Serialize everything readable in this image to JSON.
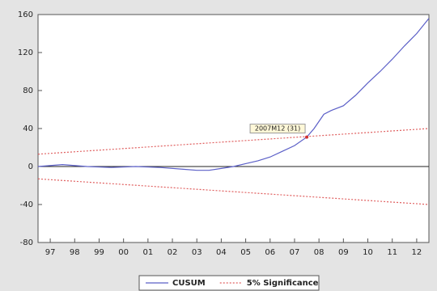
{
  "chart_data": {
    "type": "line",
    "xlim": [
      1997,
      2013
    ],
    "xticks": [
      {
        "value": 1997.5,
        "label": "97"
      },
      {
        "value": 1998.5,
        "label": "98"
      },
      {
        "value": 1999.5,
        "label": "99"
      },
      {
        "value": 2000.5,
        "label": "00"
      },
      {
        "value": 2001.5,
        "label": "01"
      },
      {
        "value": 2002.5,
        "label": "02"
      },
      {
        "value": 2003.5,
        "label": "03"
      },
      {
        "value": 2004.5,
        "label": "04"
      },
      {
        "value": 2005.5,
        "label": "05"
      },
      {
        "value": 2006.5,
        "label": "06"
      },
      {
        "value": 2007.5,
        "label": "07"
      },
      {
        "value": 2008.5,
        "label": "08"
      },
      {
        "value": 2009.5,
        "label": "09"
      },
      {
        "value": 2010.5,
        "label": "10"
      },
      {
        "value": 2011.5,
        "label": "11"
      },
      {
        "value": 2012.5,
        "label": "12"
      }
    ],
    "ylim": [
      -80,
      160
    ],
    "yticks": [
      -80,
      -40,
      0,
      40,
      80,
      120,
      160
    ],
    "series": [
      {
        "name": "CUSUM",
        "color": "#5b5fc7",
        "dash": false,
        "x": [
          1997,
          1998,
          1999,
          2000,
          2001,
          2002,
          2003,
          2003.5,
          2004,
          2004.5,
          2005,
          2005.5,
          2006,
          2006.5,
          2007,
          2007.5,
          2008,
          2008.3,
          2008.7,
          2009,
          2009.5,
          2010,
          2010.5,
          2011,
          2011.5,
          2012,
          2012.5,
          2013
        ],
        "values": [
          0,
          2,
          0,
          -1,
          0,
          -1,
          -3,
          -4,
          -4,
          -2,
          0,
          3,
          6,
          10,
          16,
          22,
          31,
          40,
          55,
          59,
          64,
          75,
          88,
          100,
          113,
          127,
          140,
          156
        ]
      },
      {
        "name": "5% Significance",
        "color": "#e06060",
        "dash": true,
        "x": [
          1997,
          2013
        ],
        "values": [
          13,
          40
        ]
      },
      {
        "color": "#e06060",
        "dash": true,
        "x": [
          1997,
          2013
        ],
        "values": [
          -13,
          -40
        ]
      }
    ],
    "annotations": [
      {
        "text": "2007M12  (31)",
        "x": 2008,
        "y": 31
      }
    ]
  }
}
